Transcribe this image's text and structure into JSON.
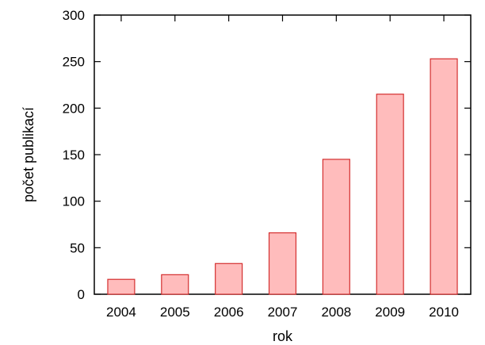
{
  "chart_data": {
    "type": "bar",
    "title": "",
    "xlabel": "rok",
    "ylabel": "počet publikací",
    "categories": [
      "2004",
      "2005",
      "2006",
      "2007",
      "2008",
      "2009",
      "2010"
    ],
    "values": [
      16,
      21,
      33,
      66,
      145,
      215,
      253
    ],
    "ylim": [
      0,
      300
    ],
    "yticks": [
      0,
      50,
      100,
      150,
      200,
      250,
      300
    ],
    "grid": false,
    "legend": "none",
    "colors": {
      "bar_fill": "#ffbcbc",
      "bar_stroke": "#d42f2f",
      "axis": "#000000"
    }
  }
}
